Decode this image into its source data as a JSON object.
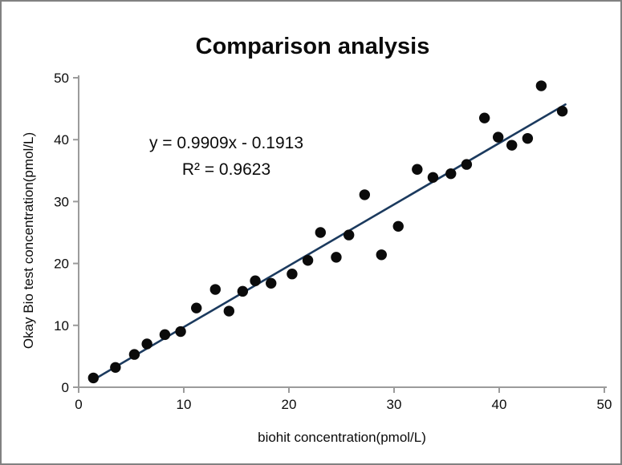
{
  "window": {
    "background": "#ffffff",
    "border_color": "#818181"
  },
  "chart_data": {
    "type": "scatter",
    "title": "Comparison analysis",
    "xlabel": "biohit concentration(pmol/L)",
    "ylabel": "Okay Bio test concentration(pmol/L)",
    "xlim": [
      0,
      50
    ],
    "ylim": [
      0,
      50
    ],
    "xticks": [
      0,
      10,
      20,
      30,
      40,
      50
    ],
    "yticks": [
      0,
      10,
      20,
      30,
      40,
      50
    ],
    "grid": false,
    "legend": "none",
    "axis_color": "#9b9b9b",
    "point_color": "#0b0b0b",
    "point_radius": 6.7,
    "points": [
      [
        1.4,
        1.5
      ],
      [
        3.5,
        3.2
      ],
      [
        5.3,
        5.3
      ],
      [
        6.5,
        7.0
      ],
      [
        8.2,
        8.5
      ],
      [
        9.7,
        9.0
      ],
      [
        11.2,
        12.8
      ],
      [
        13.0,
        15.8
      ],
      [
        14.3,
        12.3
      ],
      [
        15.6,
        15.5
      ],
      [
        16.8,
        17.2
      ],
      [
        18.3,
        16.8
      ],
      [
        20.3,
        18.3
      ],
      [
        21.8,
        20.5
      ],
      [
        23.0,
        25.0
      ],
      [
        24.5,
        21.0
      ],
      [
        25.7,
        24.6
      ],
      [
        27.2,
        31.1
      ],
      [
        28.8,
        21.4
      ],
      [
        30.4,
        26.0
      ],
      [
        32.2,
        35.2
      ],
      [
        33.7,
        33.9
      ],
      [
        35.4,
        34.5
      ],
      [
        36.9,
        36.0
      ],
      [
        38.6,
        43.5
      ],
      [
        39.9,
        40.4
      ],
      [
        41.2,
        39.1
      ],
      [
        42.7,
        40.2
      ],
      [
        44.0,
        48.7
      ],
      [
        46.0,
        44.6
      ]
    ],
    "trendline": {
      "slope": 0.9909,
      "intercept": -0.1913,
      "x_start": 1.3,
      "x_end": 46.3,
      "color": "#1b3a5e",
      "width": 2.6,
      "equation_label": "y = 0.9909x - 0.1913",
      "r2_label": "R² = 0.9623"
    }
  }
}
